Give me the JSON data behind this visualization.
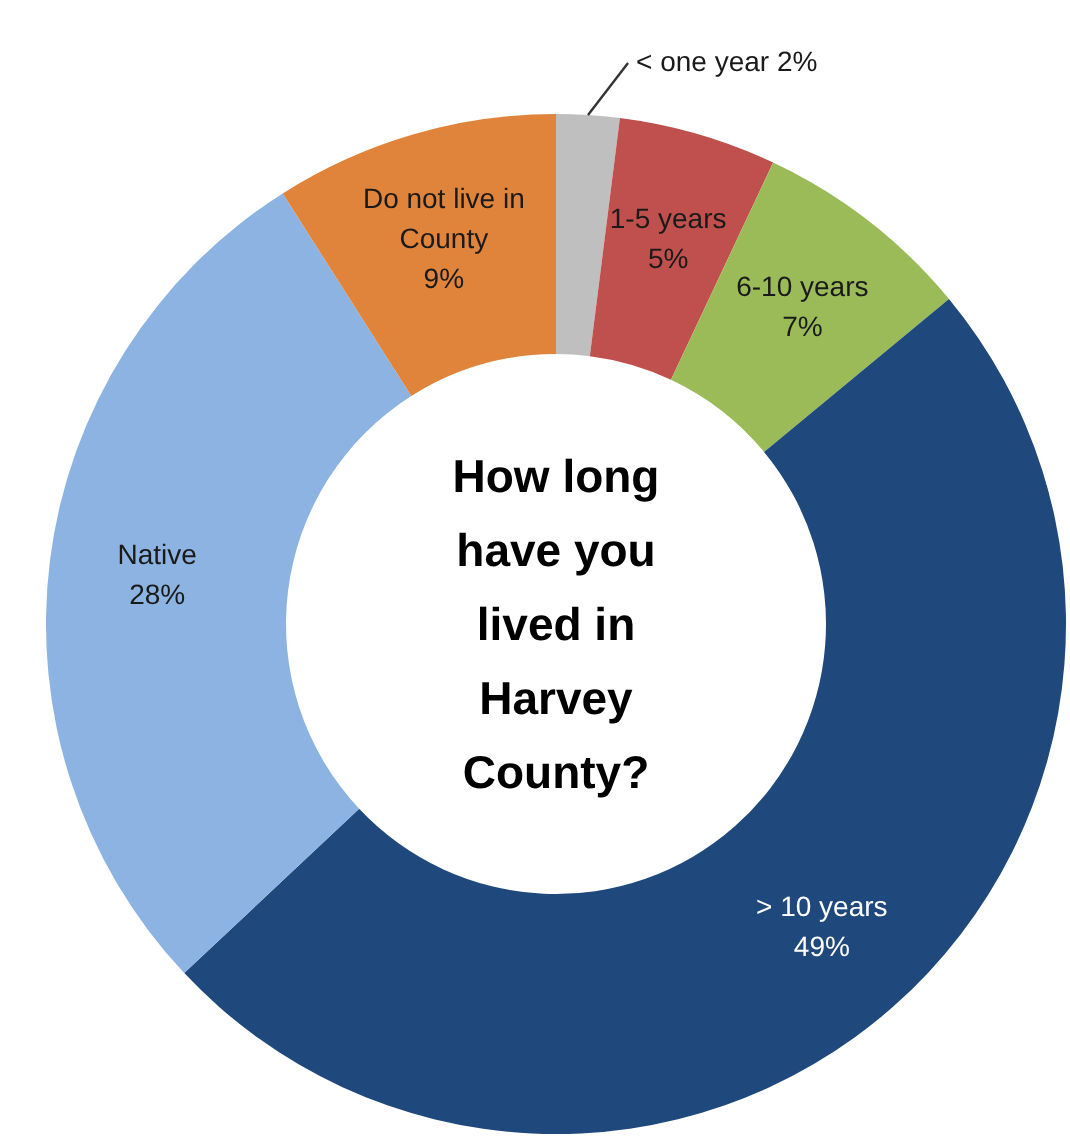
{
  "chart_data": {
    "type": "donut",
    "title": "How long have you lived in Harvey County?",
    "categories": [
      "< one year",
      "1-5 years",
      "6-10 years",
      "> 10 years",
      "Native",
      "Do not live in County"
    ],
    "values": [
      2,
      5,
      7,
      49,
      28,
      9
    ],
    "value_labels": [
      "2%",
      "5%",
      "7%",
      "49%",
      "28%",
      "9%"
    ],
    "colors": [
      "#bfbfbf",
      "#c0504d",
      "#9bbb59",
      "#1f497d",
      "#8db3e2",
      "#e0843b"
    ]
  }
}
